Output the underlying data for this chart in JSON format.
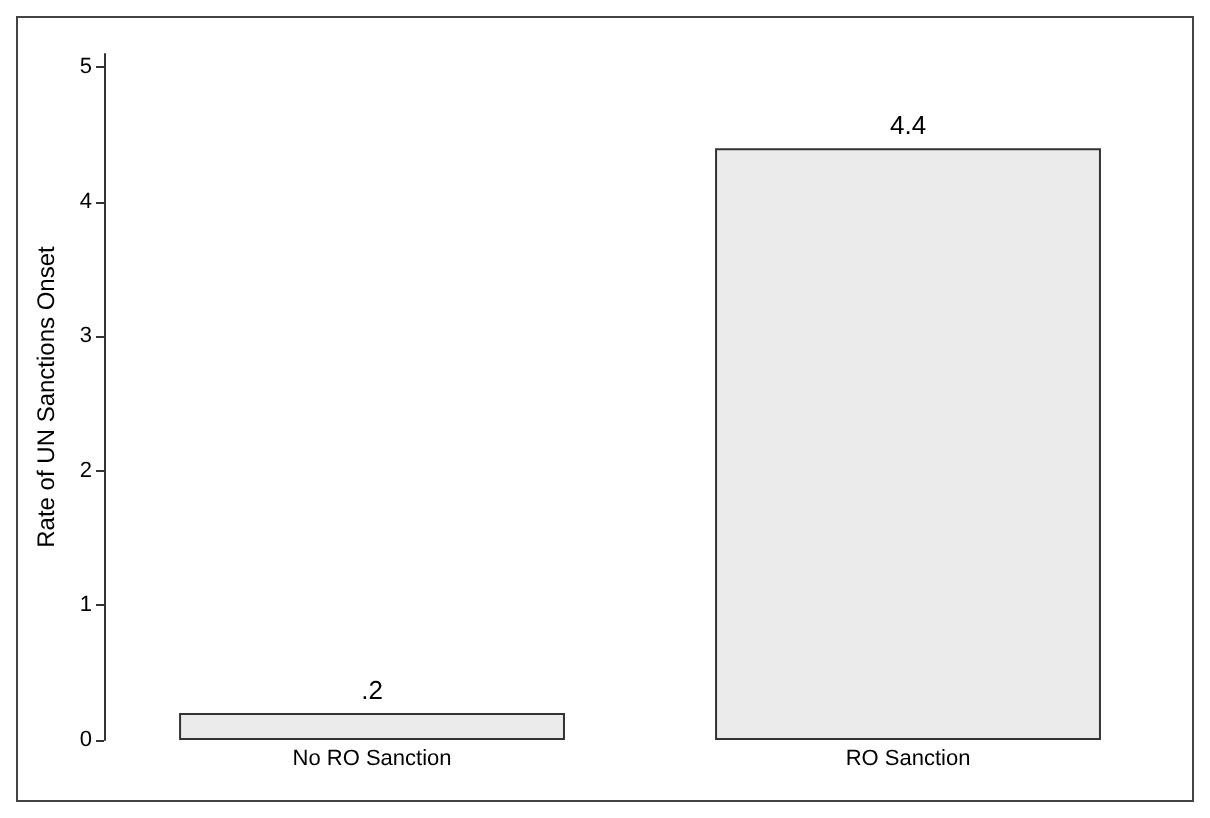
{
  "chart_data": {
    "type": "bar",
    "ylabel": "Rate of UN Sanctions Onset",
    "categories": [
      "No RO Sanction",
      "RO Sanction"
    ],
    "values": [
      0.2,
      4.4
    ],
    "color": "#ebebeb",
    "value_labels": [
      ".2",
      "4.4"
    ],
    "ylim": [
      0,
      5.1
    ],
    "yticks": [
      0,
      1,
      2,
      3,
      4,
      5
    ],
    "grid": false
  }
}
